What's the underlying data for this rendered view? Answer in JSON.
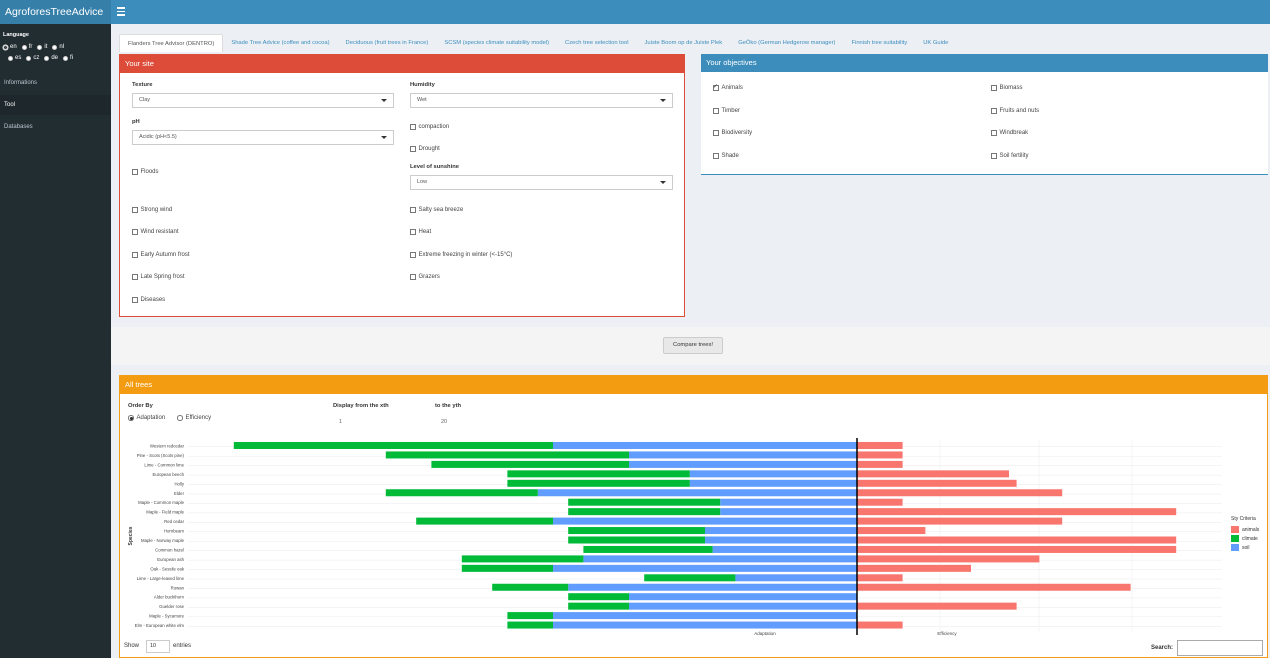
{
  "header": {
    "app_title": "AgroforesTreeAdvice"
  },
  "sidebar": {
    "language_title": "Language",
    "languages_row1": [
      {
        "code": "en",
        "selected": true
      },
      {
        "code": "fr",
        "selected": false
      },
      {
        "code": "it",
        "selected": false
      },
      {
        "code": "nl",
        "selected": false
      }
    ],
    "languages_row2": [
      {
        "code": "es",
        "selected": false
      },
      {
        "code": "cz",
        "selected": false
      },
      {
        "code": "de",
        "selected": false
      },
      {
        "code": "fi",
        "selected": false
      }
    ],
    "items": [
      {
        "label": "Informations",
        "active": false
      },
      {
        "label": "Tool",
        "active": true
      },
      {
        "label": "Databases",
        "active": false
      }
    ]
  },
  "tabs": [
    {
      "label": "Flanders Tree Advisor (DENTRO)",
      "active": true
    },
    {
      "label": "Shade Tree Advice (coffee and cocoa)",
      "active": false
    },
    {
      "label": "Deciduous (fruit trees in France)",
      "active": false
    },
    {
      "label": "SCSM (species climate suitability model)",
      "active": false
    },
    {
      "label": "Czech tree selection tool",
      "active": false
    },
    {
      "label": "Juiste Boom op de Juiste Plek",
      "active": false
    },
    {
      "label": "GeÖko (German Hedgerow manager)",
      "active": false
    },
    {
      "label": "Finnish tree suitability",
      "active": false
    },
    {
      "label": "UK Guide",
      "active": false
    }
  ],
  "site": {
    "title": "Your site",
    "texture_label": "Texture",
    "texture_value": "Clay",
    "humidity_label": "Humidity",
    "humidity_value": "Wet",
    "ph_label": "pH",
    "ph_value": "Acidic (pH<5.5)",
    "sunshine_label": "Level of sunshine",
    "sunshine_value": "Low",
    "checks_left": [
      {
        "label": "Floods",
        "checked": false
      },
      {
        "label": "Strong wind",
        "checked": false
      },
      {
        "label": "Wind resistant",
        "checked": false
      },
      {
        "label": "Early Autumn frost",
        "checked": false
      },
      {
        "label": "Late Spring frost",
        "checked": false
      },
      {
        "label": "Diseases",
        "checked": false
      }
    ],
    "checks_right": [
      {
        "label": "compaction",
        "checked": false
      },
      {
        "label": "Drought",
        "checked": false
      },
      {
        "label": "Salty sea breeze",
        "checked": false
      },
      {
        "label": "Heat",
        "checked": false
      },
      {
        "label": "Extreme freezing in winter (<-15°C)",
        "checked": false
      },
      {
        "label": "Grazers",
        "checked": false
      }
    ]
  },
  "objectives": {
    "title": "Your objectives",
    "items": [
      {
        "label": "Animals",
        "checked": true
      },
      {
        "label": "Biomass",
        "checked": false
      },
      {
        "label": "Timber",
        "checked": false
      },
      {
        "label": "Fruits and nuts",
        "checked": false
      },
      {
        "label": "Biodiversity",
        "checked": false
      },
      {
        "label": "Windbreak",
        "checked": false
      },
      {
        "label": "Shade",
        "checked": false
      },
      {
        "label": "Soil fertility",
        "checked": false
      }
    ]
  },
  "compare_button": "Compare trees!",
  "all_trees": {
    "title": "All trees",
    "order_by_label": "Order By",
    "order_options": [
      {
        "label": "Adaptation",
        "selected": true
      },
      {
        "label": "Efficiency",
        "selected": false
      }
    ],
    "display_from_label": "Display from the xth",
    "display_from_value": "1",
    "to_label": "to the yth",
    "to_value": "20",
    "show_label": "Show",
    "show_value": "10",
    "entries_label": "entries",
    "search_label": "Search:"
  },
  "chart_data": {
    "type": "bar",
    "orientation": "horizontal diverging",
    "ylabel": "Species",
    "xlabels": [
      "Adaptation",
      "Efficiency"
    ],
    "legend_title": "Sty Criteria",
    "legend_position": "right",
    "series_colors": {
      "animals": "#f8766d",
      "climate": "#00ba38",
      "soil": "#619cff"
    },
    "categories": [
      "Western redcedar",
      "Pine - Scots (Scots pine)",
      "Lime - Common lime",
      "European beech",
      "Holly",
      "Elder",
      "Maple - Common maple",
      "Maple - Field maple",
      "Red cedar",
      "Hornbeam",
      "Maple - Norway maple",
      "Common hazel",
      "European ash",
      "Oak - Sessile oak",
      "Lime - Large-leaved lime",
      "Rowan",
      "Alder buckthorn",
      "Guelder rose",
      "Maple - Sycamore",
      "Elm - European white elm"
    ],
    "series": [
      {
        "name": "climate",
        "values": [
          21,
          16,
          13,
          12,
          12,
          10,
          10,
          10,
          9,
          9,
          9,
          8.5,
          8,
          6,
          6,
          5,
          4,
          4,
          3,
          3
        ]
      },
      {
        "name": "soil",
        "values": [
          20,
          15,
          15,
          11,
          11,
          21,
          9,
          9,
          20,
          10,
          10,
          9.5,
          18,
          20,
          8,
          19,
          15,
          15,
          20,
          20
        ]
      },
      {
        "name": "animals",
        "values": [
          3,
          3,
          3,
          10,
          10.5,
          13.5,
          3,
          21,
          13.5,
          4.5,
          21,
          21,
          12,
          7.5,
          3,
          18,
          0,
          10.5,
          0,
          3
        ]
      }
    ]
  }
}
